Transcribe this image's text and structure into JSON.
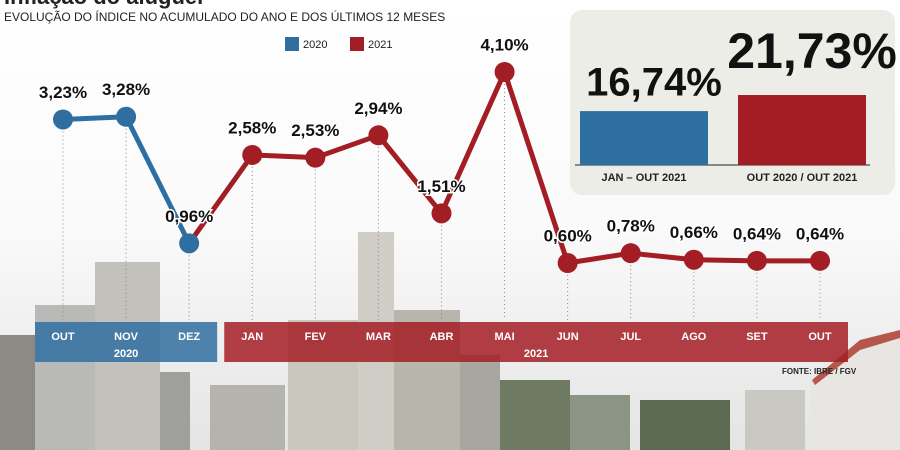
{
  "title": "Inflação do aluguel",
  "subtitle": "EVOLUÇÃO DO ÍNDICE NO ACUMULADO DO ANO E DOS ÚLTIMOS 12 MESES",
  "source": "FONTE: IBRE / FGV",
  "chart_data": [
    {
      "type": "line",
      "categories": [
        "OUT",
        "NOV",
        "DEZ",
        "JAN",
        "FEV",
        "MAR",
        "ABR",
        "MAI",
        "JUN",
        "JUL",
        "AGO",
        "SET",
        "OUT"
      ],
      "year_groups": [
        {
          "label": "2020",
          "color": "#2f6ea0"
        },
        {
          "label": "2021",
          "color": "#a31d24"
        }
      ],
      "series": [
        {
          "name": "2020",
          "color": "#2f6ea0",
          "values": [
            3.23,
            3.28,
            0.96,
            null,
            null,
            null,
            null,
            null,
            null,
            null,
            null,
            null,
            null
          ],
          "value_labels": [
            "3,23%",
            "3,28%",
            "0,96%",
            null,
            null,
            null,
            null,
            null,
            null,
            null,
            null,
            null,
            null
          ]
        },
        {
          "name": "2021",
          "color": "#a31d24",
          "values": [
            null,
            null,
            null,
            2.58,
            2.53,
            2.94,
            1.51,
            4.1,
            0.6,
            0.78,
            0.66,
            0.64,
            0.64
          ],
          "value_labels": [
            null,
            null,
            null,
            "2,58%",
            "2,53%",
            "2,94%",
            "1,51%",
            "4,10%",
            "0,60%",
            "0,78%",
            "0,66%",
            "0,64%",
            "0,64%"
          ]
        }
      ]
    },
    {
      "type": "bar",
      "categories": [
        "JAN – OUT 2021",
        "OUT 2020 / OUT 2021"
      ],
      "values": [
        16.74,
        21.73
      ],
      "value_labels": [
        "16,74%",
        "21,73%"
      ],
      "colors": [
        "#2f6ea0",
        "#a31d24"
      ]
    }
  ]
}
